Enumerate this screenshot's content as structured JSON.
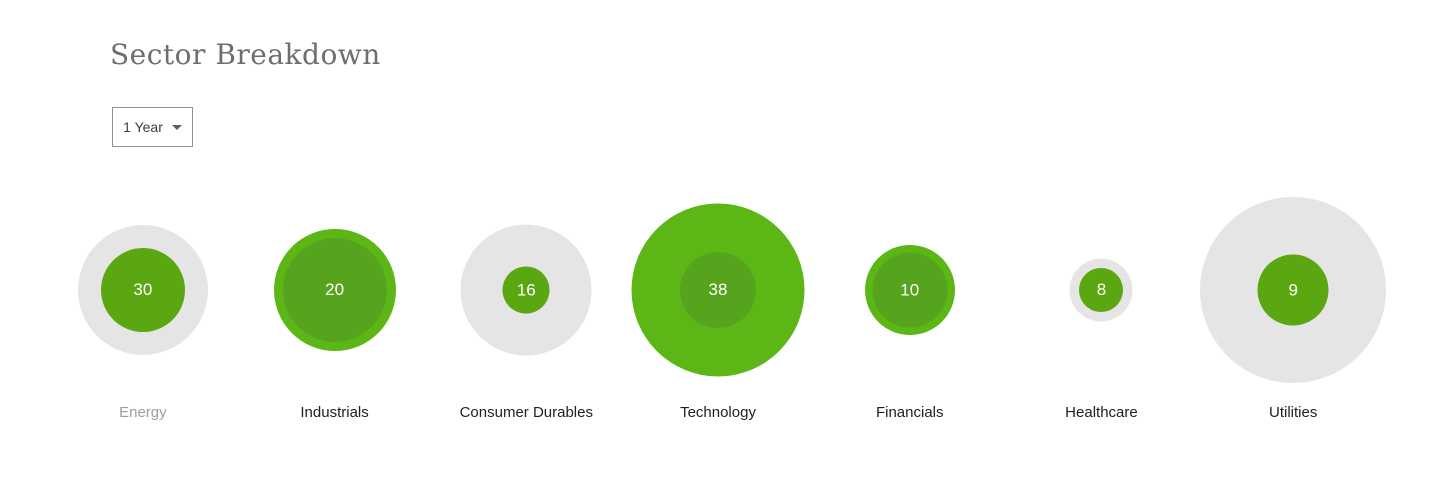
{
  "header": {
    "title": "Sector Breakdown"
  },
  "controls": {
    "period_dropdown": {
      "value": "1 Year",
      "icon": "caret-down-icon"
    }
  },
  "colors": {
    "green_bright": "#5cb615",
    "green_inner_on_gray": "#5aa711",
    "green_inner_on_green": "#56a41d",
    "gray_circle": "#e5e5e5",
    "label_dark": "#212121",
    "label_muted": "#9e9e9e",
    "title_gray": "#6e6e6e",
    "value_text": "#ffffff"
  },
  "sectors": [
    {
      "label": "Energy",
      "value": "30",
      "outer_d": 130,
      "inner_d": 84,
      "outer_style": "gray",
      "label_muted": true
    },
    {
      "label": "Industrials",
      "value": "20",
      "outer_d": 122,
      "inner_d": 104,
      "outer_style": "green",
      "label_muted": false
    },
    {
      "label": "Consumer Durables",
      "value": "16",
      "outer_d": 131,
      "inner_d": 47,
      "outer_style": "gray",
      "label_muted": false
    },
    {
      "label": "Technology",
      "value": "38",
      "outer_d": 173,
      "inner_d": 76,
      "outer_style": "green",
      "label_muted": false
    },
    {
      "label": "Financials",
      "value": "10",
      "outer_d": 90,
      "inner_d": 75,
      "outer_style": "green",
      "label_muted": false
    },
    {
      "label": "Healthcare",
      "value": "8",
      "outer_d": 63,
      "inner_d": 44,
      "outer_style": "gray",
      "label_muted": false
    },
    {
      "label": "Utilities",
      "value": "9",
      "outer_d": 186,
      "inner_d": 71,
      "outer_style": "gray",
      "label_muted": false
    }
  ],
  "chart_data": {
    "type": "scatter",
    "variant": "bubble",
    "title": "Sector Breakdown",
    "period": "1 Year",
    "categories": [
      "Energy",
      "Industrials",
      "Consumer Durables",
      "Technology",
      "Financials",
      "Healthcare",
      "Utilities"
    ],
    "values": [
      30,
      20,
      16,
      38,
      10,
      8,
      9
    ],
    "series": [
      {
        "name": "inner-bubble-value",
        "values": [
          30,
          20,
          16,
          38,
          10,
          8,
          9
        ]
      },
      {
        "name": "inner-bubble-diameter-px",
        "values": [
          84,
          104,
          47,
          76,
          75,
          44,
          71
        ]
      },
      {
        "name": "outer-bubble-diameter-px",
        "values": [
          130,
          122,
          131,
          173,
          90,
          63,
          186
        ]
      },
      {
        "name": "outer-bubble-style",
        "values": [
          "gray",
          "green",
          "gray",
          "green",
          "green",
          "gray",
          "gray"
        ]
      }
    ],
    "legend_position": "none",
    "grid": false,
    "notes": "Energy category label rendered in muted gray; all other labels dark"
  }
}
